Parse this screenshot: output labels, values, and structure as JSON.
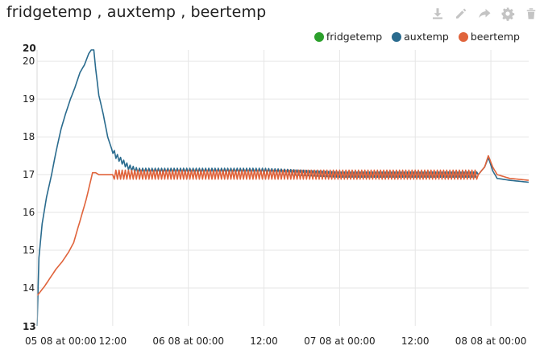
{
  "header": {
    "title": "fridgetemp , auxtemp , beertemp"
  },
  "toolbar": [
    {
      "icon": "download-icon"
    },
    {
      "icon": "pencil-icon"
    },
    {
      "icon": "share-icon"
    },
    {
      "icon": "gear-icon"
    },
    {
      "icon": "trash-icon"
    }
  ],
  "chart_data": {
    "type": "line",
    "title": "fridgetemp , auxtemp , beertemp",
    "legend_position": "top-right",
    "grid": true,
    "xlim": [
      0,
      78
    ],
    "ylim": [
      13,
      20.3
    ],
    "x_ticks": [
      {
        "x": 0,
        "label": "05 08 at 00:00"
      },
      {
        "x": 12,
        "label": "12:00"
      },
      {
        "x": 24,
        "label": "06 08 at 00:00"
      },
      {
        "x": 36,
        "label": "12:00"
      },
      {
        "x": 48,
        "label": "07 08 at 00:00"
      },
      {
        "x": 60,
        "label": "12:00"
      },
      {
        "x": 72,
        "label": "08 08 at 00:00"
      }
    ],
    "y_ticks": [
      {
        "y": 13,
        "label": "13",
        "bold": true
      },
      {
        "y": 14,
        "label": "14"
      },
      {
        "y": 15,
        "label": "15"
      },
      {
        "y": 16,
        "label": "16"
      },
      {
        "y": 17,
        "label": "17"
      },
      {
        "y": 18,
        "label": "18"
      },
      {
        "y": 19,
        "label": "19"
      },
      {
        "y": 20,
        "label": "20"
      },
      {
        "y": 20.3,
        "label": "20",
        "bold": true
      }
    ],
    "series": [
      {
        "name": "fridgetemp",
        "color": "#2ca02c",
        "points": []
      },
      {
        "name": "auxtemp",
        "color": "#2a6b8e",
        "points": [
          [
            0,
            13
          ],
          [
            0.3,
            14.8
          ],
          [
            0.8,
            15.7
          ],
          [
            1.5,
            16.4
          ],
          [
            2.3,
            17
          ],
          [
            3,
            17.6
          ],
          [
            3.8,
            18.2
          ],
          [
            4.5,
            18.6
          ],
          [
            5.3,
            19
          ],
          [
            6,
            19.3
          ],
          [
            6.8,
            19.7
          ],
          [
            7.5,
            19.9
          ],
          [
            8.2,
            20.2
          ],
          [
            8.6,
            20.3
          ],
          [
            9,
            20.3
          ],
          [
            9.3,
            19.8
          ],
          [
            9.8,
            19.1
          ],
          [
            10.5,
            18.6
          ],
          [
            11.2,
            18
          ],
          [
            11.8,
            17.7
          ],
          [
            12.5,
            17.5
          ],
          [
            13.5,
            17.35
          ],
          [
            14.5,
            17.2
          ],
          [
            16,
            17.1
          ],
          [
            18,
            17.1
          ],
          [
            20,
            17.1
          ],
          [
            24,
            17.1
          ],
          [
            30,
            17.1
          ],
          [
            36,
            17.1
          ],
          [
            42,
            17.05
          ],
          [
            48,
            17.0
          ],
          [
            54,
            17.0
          ],
          [
            60,
            17.0
          ],
          [
            66,
            17.0
          ],
          [
            70,
            17.0
          ],
          [
            71,
            17.2
          ],
          [
            71.6,
            17.45
          ],
          [
            72.3,
            17.1
          ],
          [
            73,
            16.9
          ],
          [
            75,
            16.85
          ],
          [
            78,
            16.8
          ]
        ]
      },
      {
        "name": "beertemp",
        "color": "#e0643c",
        "points": [
          [
            0,
            13.8
          ],
          [
            0.5,
            13.9
          ],
          [
            1.2,
            14.05
          ],
          [
            2,
            14.25
          ],
          [
            3,
            14.5
          ],
          [
            4,
            14.7
          ],
          [
            5,
            14.95
          ],
          [
            5.8,
            15.2
          ],
          [
            6.5,
            15.6
          ],
          [
            7.2,
            16.0
          ],
          [
            7.8,
            16.35
          ],
          [
            8.3,
            16.7
          ],
          [
            8.8,
            17.05
          ],
          [
            9.3,
            17.05
          ],
          [
            9.8,
            17.0
          ],
          [
            10.5,
            17.0
          ],
          [
            11,
            17.0
          ],
          [
            12,
            17.0
          ],
          [
            14,
            17.0
          ],
          [
            18,
            17.0
          ],
          [
            24,
            17.0
          ],
          [
            30,
            17.0
          ],
          [
            36,
            17.0
          ],
          [
            42,
            17.0
          ],
          [
            48,
            17.0
          ],
          [
            54,
            17.0
          ],
          [
            60,
            17.0
          ],
          [
            66,
            17.0
          ],
          [
            70,
            17.0
          ],
          [
            71,
            17.2
          ],
          [
            71.6,
            17.5
          ],
          [
            72.3,
            17.2
          ],
          [
            73,
            17.0
          ],
          [
            75,
            16.9
          ],
          [
            78,
            16.85
          ]
        ]
      }
    ]
  }
}
